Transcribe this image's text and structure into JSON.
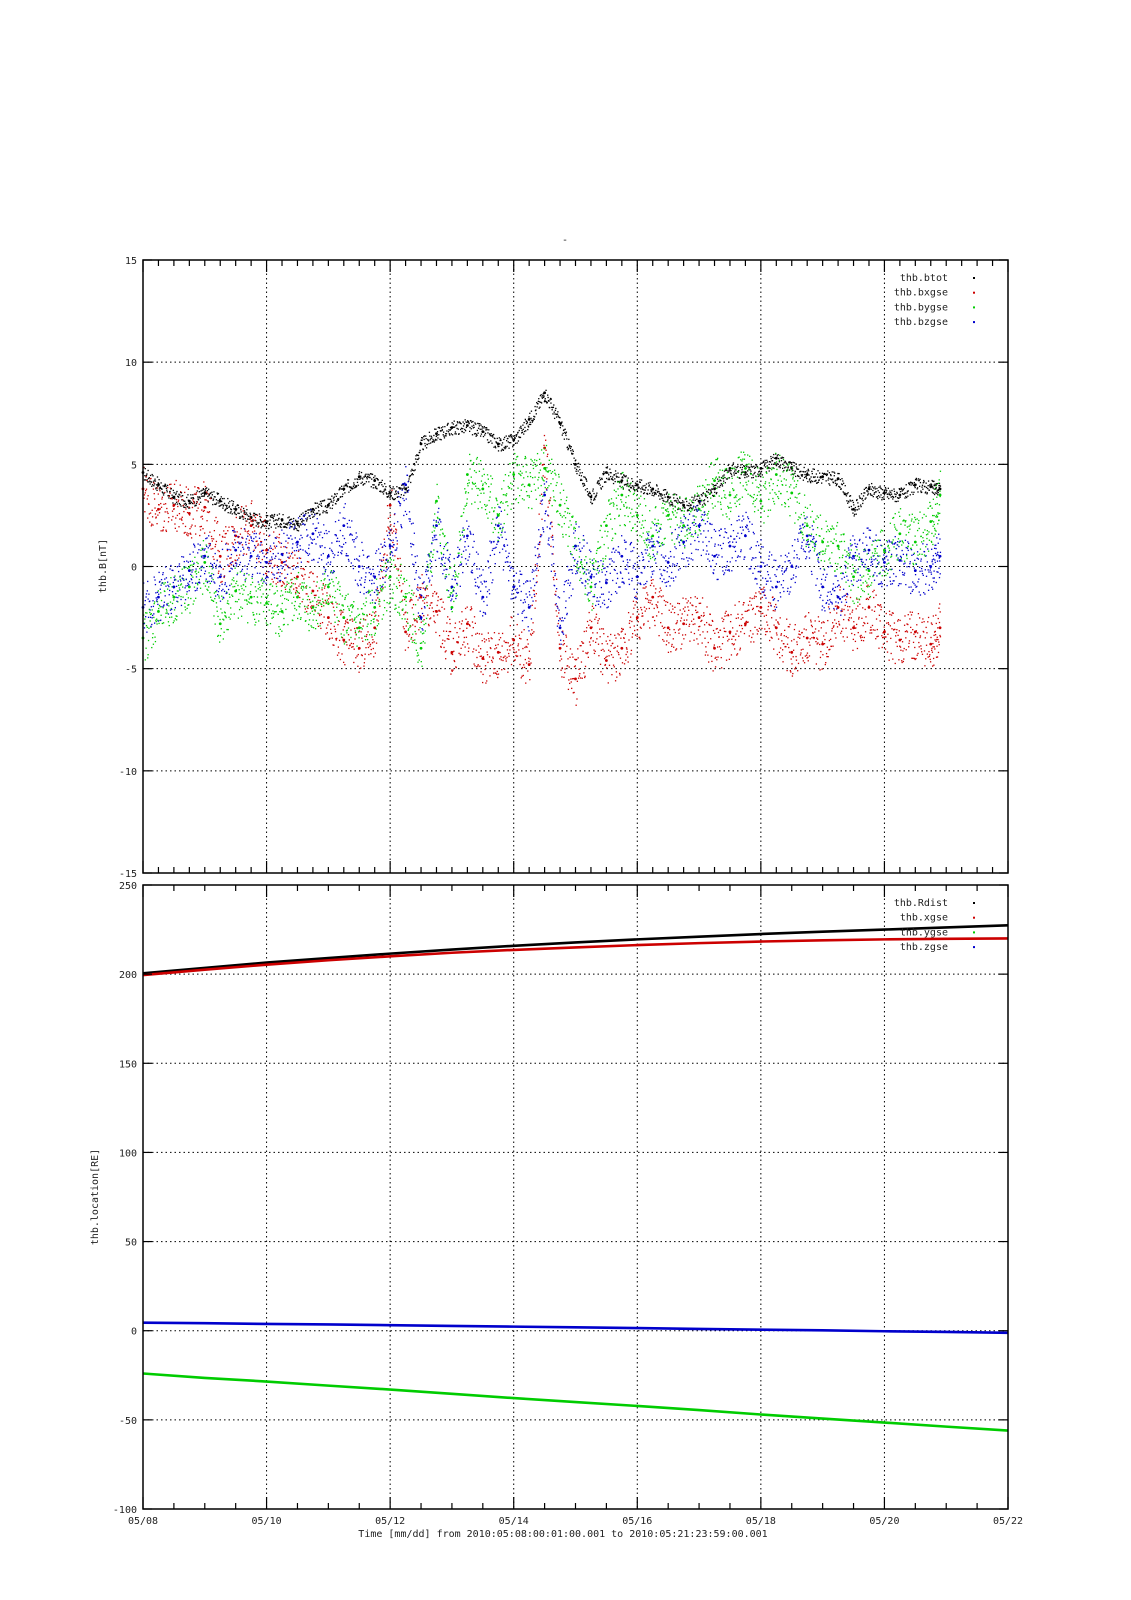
{
  "figure": {
    "title": "-",
    "footer": "Time [mm/dd]  from 2010:05:08:00:01:00.001  to  2010:05:21:23:59:00.001"
  },
  "chart_data": [
    {
      "type": "scatter",
      "ylabel": "thb.B[nT]",
      "xlabel": "",
      "xlim": [
        "05/08",
        "05/22"
      ],
      "ylim": [
        -15,
        15
      ],
      "y_ticks": [
        "-15",
        "-10",
        "-5",
        "0",
        "5",
        "10",
        "15"
      ],
      "x_ticks": [
        "05/08",
        "05/10",
        "05/12",
        "05/14",
        "05/16",
        "05/18",
        "05/20",
        "05/22"
      ],
      "grid": true,
      "legend": "top-right",
      "series": [
        {
          "name": "thb.btot",
          "color": "#000000",
          "x": [
            8.0,
            8.25,
            8.5,
            8.75,
            9.0,
            9.25,
            9.5,
            9.75,
            10.0,
            10.25,
            10.5,
            10.75,
            11.0,
            11.25,
            11.5,
            11.75,
            12.0,
            12.25,
            12.5,
            12.75,
            13.0,
            13.25,
            13.5,
            13.75,
            14.0,
            14.25,
            14.5,
            14.75,
            15.0,
            15.25,
            15.5,
            15.75,
            16.0,
            16.25,
            16.5,
            16.75,
            17.0,
            17.25,
            17.5,
            17.75,
            18.0,
            18.25,
            18.5,
            18.75,
            19.0,
            19.25,
            19.5,
            19.75,
            20.0,
            20.25,
            20.5,
            20.75,
            20.9
          ],
          "y": [
            4.6,
            4.0,
            3.4,
            3.2,
            3.6,
            3.2,
            2.8,
            2.4,
            2.2,
            2.3,
            2.1,
            2.8,
            3.0,
            3.8,
            4.4,
            4.2,
            3.6,
            3.8,
            6.0,
            6.5,
            6.8,
            6.9,
            6.6,
            6.0,
            6.2,
            7.2,
            8.5,
            7.0,
            5.0,
            3.4,
            4.6,
            4.2,
            4.0,
            3.8,
            3.4,
            3.0,
            3.2,
            3.8,
            4.8,
            4.6,
            4.8,
            5.3,
            4.8,
            4.5,
            4.4,
            4.3,
            2.8,
            3.8,
            3.6,
            3.5,
            4.0,
            3.9,
            3.8
          ]
        },
        {
          "name": "thb.bxgse",
          "color": "#cc0000",
          "x": [
            8.0,
            8.25,
            8.5,
            8.75,
            9.0,
            9.25,
            9.5,
            9.75,
            10.0,
            10.25,
            10.5,
            10.75,
            11.0,
            11.25,
            11.5,
            11.75,
            12.0,
            12.25,
            12.5,
            12.75,
            13.0,
            13.25,
            13.5,
            13.75,
            14.0,
            14.25,
            14.5,
            14.75,
            15.0,
            15.25,
            15.5,
            15.75,
            16.0,
            16.25,
            16.5,
            16.75,
            17.0,
            17.25,
            17.5,
            17.75,
            18.0,
            18.25,
            18.5,
            18.75,
            19.0,
            19.25,
            19.5,
            19.75,
            20.0,
            20.25,
            20.5,
            20.75,
            20.9
          ],
          "y": [
            3.8,
            2.8,
            3.0,
            2.6,
            2.9,
            0.5,
            1.5,
            2.0,
            0.8,
            0.2,
            -0.5,
            -1.2,
            -2.5,
            -3.6,
            -4.0,
            -3.0,
            3.0,
            -3.2,
            -1.5,
            -2.2,
            -4.2,
            -2.8,
            -4.5,
            -4.2,
            -3.6,
            -4.8,
            5.8,
            -4.0,
            -5.5,
            -3.0,
            -4.6,
            -4.0,
            -2.5,
            -1.5,
            -3.0,
            -2.8,
            -2.5,
            -4.0,
            -3.2,
            -2.8,
            -2.0,
            -3.0,
            -4.2,
            -3.5,
            -3.8,
            -2.0,
            -3.0,
            -2.0,
            -3.2,
            -3.6,
            -3.2,
            -3.8,
            -3.0
          ]
        },
        {
          "name": "thb.bygse",
          "color": "#00cc00",
          "x": [
            8.0,
            8.25,
            8.5,
            8.75,
            9.0,
            9.25,
            9.5,
            9.75,
            10.0,
            10.25,
            10.5,
            10.75,
            11.0,
            11.25,
            11.5,
            11.75,
            12.0,
            12.25,
            12.5,
            12.75,
            13.0,
            13.25,
            13.5,
            13.75,
            14.0,
            14.25,
            14.5,
            14.75,
            15.0,
            15.25,
            15.5,
            15.75,
            16.0,
            16.25,
            16.5,
            16.75,
            17.0,
            17.25,
            17.5,
            17.75,
            18.0,
            18.25,
            18.5,
            18.75,
            19.0,
            19.25,
            19.5,
            19.75,
            20.0,
            20.25,
            20.5,
            20.75,
            20.9
          ],
          "y": [
            -3.5,
            -2.2,
            -1.5,
            -1.0,
            0.2,
            -2.8,
            -1.2,
            -1.5,
            -1.8,
            -2.2,
            -1.5,
            -2.0,
            -1.0,
            -2.5,
            -3.0,
            -2.0,
            -0.5,
            -1.5,
            -4.0,
            3.2,
            -2.0,
            4.5,
            3.8,
            2.5,
            4.5,
            4.0,
            4.8,
            3.0,
            1.0,
            -1.0,
            2.0,
            3.5,
            2.5,
            1.5,
            2.5,
            2.0,
            2.8,
            4.2,
            3.5,
            4.8,
            3.2,
            4.5,
            3.6,
            2.0,
            1.2,
            1.0,
            -0.5,
            -0.2,
            0.8,
            1.6,
            1.2,
            2.2,
            3.5
          ]
        },
        {
          "name": "thb.bzgse",
          "color": "#0000cc",
          "x": [
            8.0,
            8.25,
            8.5,
            8.75,
            9.0,
            9.25,
            9.5,
            9.75,
            10.0,
            10.25,
            10.5,
            10.75,
            11.0,
            11.25,
            11.5,
            11.75,
            12.0,
            12.25,
            12.5,
            12.75,
            13.0,
            13.25,
            13.5,
            13.75,
            14.0,
            14.25,
            14.5,
            14.75,
            15.0,
            15.25,
            15.5,
            15.75,
            16.0,
            16.25,
            16.5,
            16.75,
            17.0,
            17.25,
            17.5,
            17.75,
            18.0,
            18.25,
            18.5,
            18.75,
            19.0,
            19.25,
            19.5,
            19.75,
            20.0,
            20.25,
            20.5,
            20.75,
            20.9
          ],
          "y": [
            -2.0,
            -1.5,
            -1.0,
            -0.2,
            0.5,
            -0.5,
            0.8,
            0.5,
            0.2,
            0.6,
            1.2,
            1.6,
            0.5,
            2.0,
            0.0,
            -0.5,
            1.0,
            4.0,
            -2.5,
            2.0,
            -1.0,
            1.5,
            -1.5,
            2.0,
            -1.0,
            -2.0,
            3.5,
            -3.0,
            1.0,
            -0.5,
            -0.8,
            0.5,
            -0.5,
            1.0,
            0.2,
            1.2,
            2.0,
            0.5,
            1.0,
            1.5,
            0.0,
            -1.0,
            0.0,
            1.5,
            -1.0,
            -1.5,
            0.5,
            0.8,
            0.2,
            0.3,
            -0.2,
            0.0,
            0.5
          ]
        }
      ]
    },
    {
      "type": "line",
      "ylabel": "thb.location[RE]",
      "xlabel": "Time [mm/dd]",
      "xlim": [
        "05/08",
        "05/22"
      ],
      "ylim": [
        -100,
        250
      ],
      "y_ticks": [
        "-100",
        "-50",
        "0",
        "50",
        "100",
        "150",
        "200",
        "250"
      ],
      "x_ticks": [
        "05/08",
        "05/10",
        "05/12",
        "05/14",
        "05/16",
        "05/18",
        "05/20",
        "05/22"
      ],
      "grid": true,
      "legend": "top-right",
      "series": [
        {
          "name": "thb.Rdist",
          "color": "#000000",
          "x": [
            8,
            9,
            10,
            11,
            12,
            13,
            14,
            15,
            16,
            17,
            18,
            19,
            20,
            21,
            22
          ],
          "y": [
            200.5,
            203.5,
            206.5,
            209.0,
            211.5,
            213.8,
            215.9,
            217.8,
            219.5,
            221.0,
            222.5,
            223.8,
            225.0,
            226.2,
            227.4
          ]
        },
        {
          "name": "thb.xgse",
          "color": "#cc0000",
          "x": [
            8,
            9,
            10,
            11,
            12,
            13,
            14,
            15,
            16,
            17,
            18,
            19,
            20,
            21,
            22
          ],
          "y": [
            199.5,
            202.5,
            205.3,
            207.8,
            210.0,
            212.0,
            213.6,
            215.0,
            216.3,
            217.4,
            218.3,
            219.0,
            219.5,
            219.8,
            220.0
          ]
        },
        {
          "name": "thb.ygse",
          "color": "#00cc00",
          "x": [
            8,
            9,
            10,
            11,
            12,
            13,
            14,
            15,
            16,
            17,
            18,
            19,
            20,
            21,
            22
          ],
          "y": [
            -24.0,
            -26.5,
            -28.5,
            -30.8,
            -33.0,
            -35.4,
            -37.8,
            -40.0,
            -42.2,
            -44.5,
            -47.0,
            -49.3,
            -51.5,
            -53.8,
            -56.0
          ]
        },
        {
          "name": "thb.zgse",
          "color": "#0000cc",
          "x": [
            8,
            9,
            10,
            11,
            12,
            13,
            14,
            15,
            16,
            17,
            18,
            19,
            20,
            21,
            22
          ],
          "y": [
            4.5,
            4.2,
            3.8,
            3.5,
            3.1,
            2.7,
            2.3,
            1.9,
            1.5,
            1.0,
            0.6,
            0.2,
            -0.3,
            -0.7,
            -1.2
          ]
        }
      ]
    }
  ]
}
